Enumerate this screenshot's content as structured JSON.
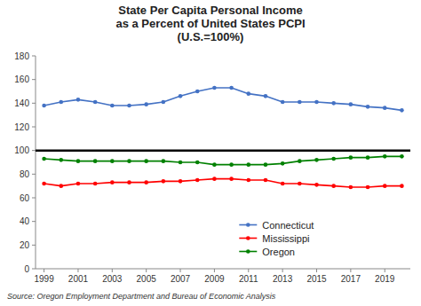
{
  "chart_data": {
    "type": "line",
    "title": "State Per Capita Personal Income\nas a Percent of United States PCPI\n(U.S.=100%)",
    "x": [
      1999,
      2000,
      2001,
      2002,
      2003,
      2004,
      2005,
      2006,
      2007,
      2008,
      2009,
      2010,
      2011,
      2012,
      2013,
      2014,
      2015,
      2016,
      2017,
      2018,
      2019,
      2020
    ],
    "series": [
      {
        "name": "Connecticut",
        "color": "#4472C4",
        "values": [
          138,
          141,
          143,
          141,
          138,
          138,
          139,
          141,
          146,
          150,
          153,
          153,
          148,
          146,
          141,
          141,
          141,
          140,
          139,
          137,
          136,
          134
        ]
      },
      {
        "name": "Mississippi",
        "color": "#FF0000",
        "values": [
          72,
          70,
          72,
          72,
          73,
          73,
          73,
          74,
          74,
          75,
          76,
          76,
          75,
          75,
          72,
          72,
          71,
          70,
          69,
          69,
          70,
          70
        ]
      },
      {
        "name": "Oregon",
        "color": "#008000",
        "values": [
          93,
          92,
          91,
          91,
          91,
          91,
          91,
          91,
          90,
          90,
          88,
          88,
          88,
          88,
          89,
          91,
          92,
          93,
          94,
          94,
          95,
          95
        ]
      }
    ],
    "reference_line": {
      "value": 100,
      "color": "#000000"
    },
    "xlim": [
      1998.5,
      2020.5
    ],
    "xticks": [
      1999,
      2001,
      2003,
      2005,
      2007,
      2009,
      2011,
      2013,
      2015,
      2017,
      2019
    ],
    "ylim": [
      0,
      180
    ],
    "yticks": [
      0,
      20,
      40,
      60,
      80,
      100,
      120,
      140,
      160,
      180
    ],
    "marker": "circle",
    "grid": false,
    "legend": "lower center",
    "source": "Source: Oregon Employment Department and Bureau of Economic Analysis"
  }
}
